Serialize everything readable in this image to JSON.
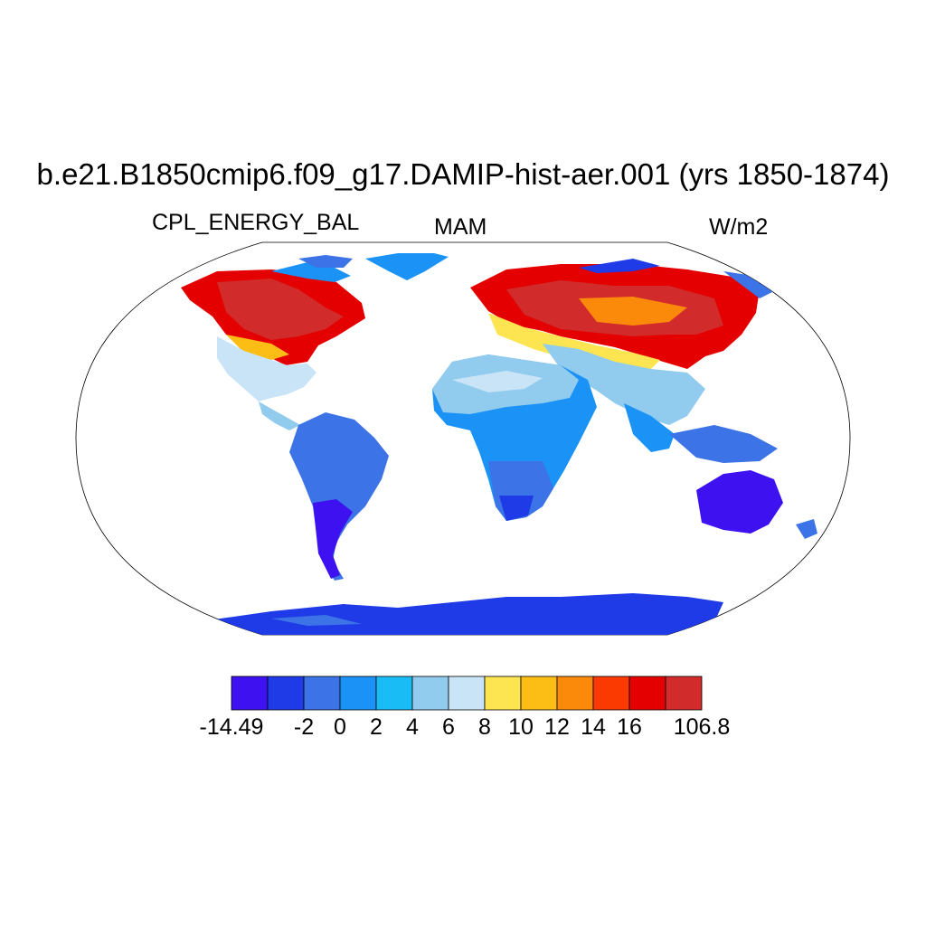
{
  "title": "b.e21.B1850cmip6.f09_g17.DAMIP-hist-aer.001 (yrs 1850-1874)",
  "variable": "CPL_ENERGY_BAL",
  "season": "MAM",
  "units": "W/m2",
  "colorbar": {
    "colors": [
      "#3e12f0",
      "#1f3be8",
      "#3c73e6",
      "#1b92f5",
      "#1abcf6",
      "#91cbee",
      "#c8e4f6",
      "#fde451",
      "#fcbd14",
      "#fb8a0a",
      "#fb3a02",
      "#e40000",
      "#d12b2b"
    ],
    "labels": [
      "-14.49",
      "-2",
      "0",
      "2",
      "4",
      "6",
      "8",
      "10",
      "12",
      "14",
      "16",
      "106.8"
    ],
    "label_boundaries": [
      0,
      2,
      3,
      4,
      5,
      6,
      7,
      8,
      9,
      10,
      11,
      13
    ]
  },
  "map": {
    "projection": "robinson",
    "ocean_color": "#ffffff"
  }
}
